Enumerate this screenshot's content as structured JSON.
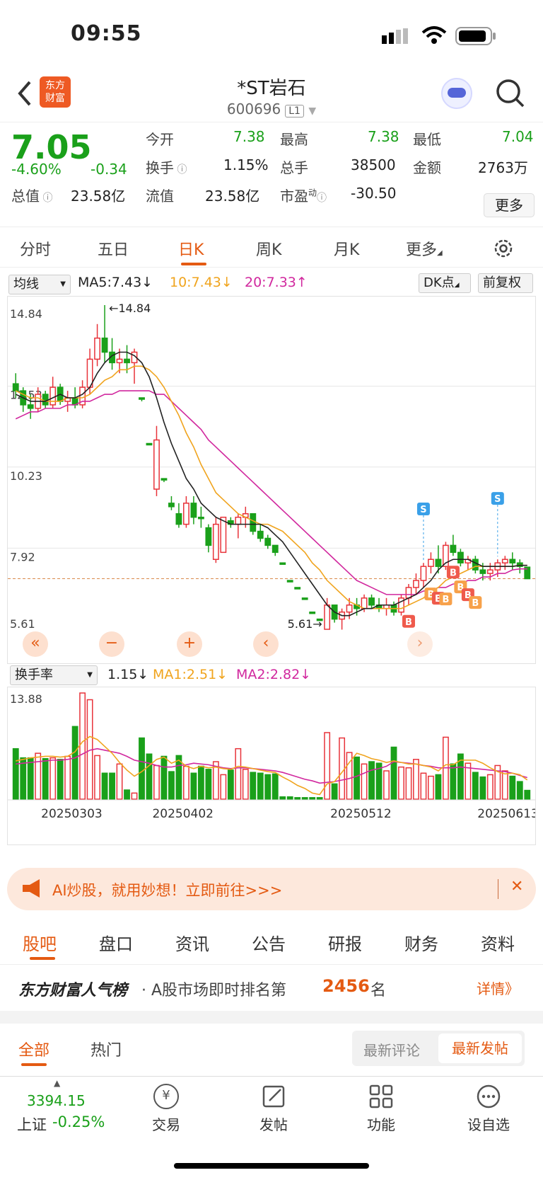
{
  "status": {
    "time": "09:55"
  },
  "nav": {
    "title": "*ST岩石",
    "code": "600696",
    "level": "L1"
  },
  "quote": {
    "price": "7.05",
    "pct": "-4.60%",
    "change": "-0.34",
    "items": [
      {
        "label": "今开",
        "value": "7.38"
      },
      {
        "label": "最高",
        "value": "7.38"
      },
      {
        "label": "最低",
        "value": "7.04"
      },
      {
        "label": "换手",
        "value": "1.15%"
      },
      {
        "label": "总手",
        "value": "38500"
      },
      {
        "label": "金额",
        "value": "2763万"
      },
      {
        "label": "总值",
        "value": "23.58亿"
      },
      {
        "label": "流值",
        "value": "23.58亿"
      },
      {
        "label": "市盈",
        "value": "-30.50"
      }
    ],
    "dyn": "动",
    "more": "更多"
  },
  "tabs": [
    "分时",
    "五日",
    "日K",
    "周K",
    "月K",
    "更多"
  ],
  "ma": {
    "select": "均线",
    "ma5": "MA5:7.43↓",
    "ma10": "10:7.43↓",
    "ma20": "20:7.33↑",
    "dk": "DK点",
    "fq": "前复权"
  },
  "vol": {
    "select": "换手率",
    "v": "1.15↓",
    "ma1": "MA1:2.51↓",
    "ma2": "MA2:2.82↓",
    "top": "13.88"
  },
  "chart_data": {
    "type": "candlestick",
    "y_ticks": [
      "14.84",
      "12.53",
      "10.23",
      "7.92",
      "5.61"
    ],
    "ylim": [
      5.61,
      14.84
    ],
    "high_label": "←14.84",
    "low_label": "5.61→",
    "x_ticks": [
      "20250303",
      "20250402",
      "20250512",
      "20250613"
    ],
    "candles": [
      [
        12.6,
        12.9,
        12.2,
        12.4
      ],
      [
        12.4,
        12.5,
        11.8,
        12.0
      ],
      [
        12.0,
        12.3,
        11.6,
        11.9
      ],
      [
        11.9,
        12.5,
        11.8,
        12.3
      ],
      [
        12.3,
        12.4,
        11.9,
        12.0
      ],
      [
        12.0,
        12.8,
        11.9,
        12.5
      ],
      [
        12.5,
        12.6,
        12.0,
        12.1
      ],
      [
        12.1,
        12.4,
        11.8,
        12.2
      ],
      [
        12.2,
        12.5,
        11.9,
        12.0
      ],
      [
        12.0,
        12.7,
        11.9,
        12.5
      ],
      [
        12.5,
        13.6,
        12.3,
        13.3
      ],
      [
        13.3,
        14.3,
        13.1,
        13.9
      ],
      [
        13.9,
        14.84,
        13.2,
        13.5
      ],
      [
        13.5,
        13.9,
        13.0,
        13.2
      ],
      [
        13.2,
        13.6,
        12.9,
        13.3
      ],
      [
        13.3,
        13.7,
        12.9,
        13.2
      ],
      [
        13.2,
        13.6,
        12.6,
        13.5
      ],
      [
        12.2,
        12.2,
        12.1,
        12.2
      ],
      [
        10.9,
        10.9,
        10.9,
        10.9
      ],
      [
        9.6,
        11.4,
        9.4,
        11.0
      ],
      [
        9.9,
        9.9,
        9.8,
        9.9
      ],
      [
        9.2,
        9.4,
        9.0,
        9.1
      ],
      [
        8.9,
        9.2,
        8.5,
        8.6
      ],
      [
        8.6,
        9.4,
        8.5,
        9.2
      ],
      [
        9.2,
        9.4,
        8.6,
        8.8
      ],
      [
        8.8,
        9.1,
        8.5,
        8.8
      ],
      [
        8.5,
        8.6,
        7.8,
        8.0
      ],
      [
        7.6,
        8.8,
        7.5,
        8.6
      ],
      [
        7.8,
        8.8,
        7.8,
        8.8
      ],
      [
        8.7,
        8.8,
        8.5,
        8.6
      ],
      [
        8.6,
        8.9,
        8.2,
        8.8
      ],
      [
        8.8,
        9.1,
        8.5,
        8.9
      ],
      [
        8.9,
        8.9,
        8.3,
        8.4
      ],
      [
        8.4,
        8.6,
        8.1,
        8.2
      ],
      [
        8.2,
        8.3,
        7.9,
        8.0
      ],
      [
        8.0,
        8.0,
        7.7,
        7.8
      ],
      [
        7.5,
        7.5,
        7.5,
        7.5
      ],
      [
        7.0,
        7.0,
        7.0,
        7.0
      ],
      [
        6.8,
        6.8,
        6.8,
        6.8
      ],
      [
        6.5,
        6.5,
        6.5,
        6.5
      ],
      [
        6.1,
        6.1,
        6.1,
        6.1
      ],
      [
        5.9,
        5.9,
        5.9,
        5.9
      ],
      [
        5.61,
        6.5,
        5.61,
        6.3
      ],
      [
        6.3,
        6.3,
        5.8,
        5.9
      ],
      [
        5.9,
        6.2,
        5.6,
        6.1
      ],
      [
        6.1,
        6.5,
        5.9,
        6.3
      ],
      [
        6.3,
        6.5,
        6.0,
        6.2
      ],
      [
        6.2,
        6.6,
        6.1,
        6.5
      ],
      [
        6.5,
        6.6,
        6.2,
        6.3
      ],
      [
        6.3,
        6.5,
        6.1,
        6.2
      ],
      [
        6.2,
        6.5,
        6.0,
        6.3
      ],
      [
        6.3,
        6.4,
        6.0,
        6.1
      ],
      [
        6.1,
        6.6,
        6.0,
        6.5
      ],
      [
        6.5,
        6.9,
        6.3,
        6.8
      ],
      [
        6.8,
        7.2,
        6.6,
        7.0
      ],
      [
        7.0,
        7.5,
        6.8,
        7.4
      ],
      [
        7.4,
        7.8,
        7.2,
        7.6
      ],
      [
        7.6,
        8.0,
        7.2,
        7.4
      ],
      [
        7.4,
        8.1,
        7.3,
        8.0
      ],
      [
        8.0,
        8.3,
        7.7,
        7.8
      ],
      [
        7.8,
        7.9,
        7.4,
        7.5
      ],
      [
        7.5,
        7.7,
        7.3,
        7.6
      ],
      [
        7.6,
        7.7,
        7.2,
        7.3
      ],
      [
        7.3,
        7.5,
        7.0,
        7.2
      ],
      [
        7.2,
        7.5,
        7.0,
        7.3
      ],
      [
        7.3,
        7.6,
        7.1,
        7.5
      ],
      [
        7.5,
        7.7,
        7.3,
        7.6
      ],
      [
        7.6,
        7.8,
        7.3,
        7.5
      ],
      [
        7.5,
        7.6,
        7.2,
        7.4
      ],
      [
        7.38,
        7.38,
        7.04,
        7.05
      ]
    ],
    "ma5": [
      12.3,
      12.2,
      12.1,
      12.1,
      12.1,
      12.2,
      12.3,
      12.2,
      12.2,
      12.3,
      12.5,
      12.9,
      13.2,
      13.4,
      13.5,
      13.5,
      13.4,
      13.2,
      12.8,
      12.2,
      11.5,
      10.9,
      10.4,
      9.9,
      9.6,
      9.2,
      9.0,
      8.8,
      8.7,
      8.6,
      8.6,
      8.6,
      8.6,
      8.6,
      8.5,
      8.3,
      8.1,
      7.8,
      7.5,
      7.2,
      6.9,
      6.6,
      6.3,
      6.1,
      6.0,
      6.0,
      6.1,
      6.2,
      6.2,
      6.3,
      6.3,
      6.3,
      6.4,
      6.5,
      6.6,
      6.8,
      7.0,
      7.3,
      7.5,
      7.6,
      7.6,
      7.6,
      7.5,
      7.4,
      7.4,
      7.4,
      7.4,
      7.4,
      7.43,
      7.43
    ],
    "ma10": [
      12.4,
      12.3,
      12.2,
      12.2,
      12.1,
      12.1,
      12.1,
      12.2,
      12.2,
      12.2,
      12.3,
      12.5,
      12.7,
      12.8,
      13.0,
      13.0,
      13.1,
      13.1,
      13.0,
      12.8,
      12.5,
      12.1,
      11.7,
      11.2,
      10.8,
      10.3,
      9.9,
      9.5,
      9.3,
      9.1,
      8.9,
      8.8,
      8.7,
      8.6,
      8.6,
      8.5,
      8.4,
      8.2,
      8.0,
      7.8,
      7.5,
      7.3,
      7.0,
      6.8,
      6.6,
      6.4,
      6.3,
      6.2,
      6.2,
      6.2,
      6.2,
      6.2,
      6.2,
      6.3,
      6.4,
      6.5,
      6.7,
      6.8,
      7.0,
      7.1,
      7.2,
      7.3,
      7.4,
      7.4,
      7.4,
      7.4,
      7.4,
      7.4,
      7.43,
      7.43
    ],
    "ma20": [
      11.6,
      11.7,
      11.8,
      11.8,
      11.9,
      11.9,
      11.9,
      12.0,
      12.0,
      12.1,
      12.1,
      12.2,
      12.3,
      12.3,
      12.4,
      12.4,
      12.4,
      12.4,
      12.4,
      12.3,
      12.3,
      12.1,
      11.9,
      11.7,
      11.5,
      11.3,
      11.0,
      10.8,
      10.6,
      10.4,
      10.2,
      10.0,
      9.8,
      9.6,
      9.4,
      9.2,
      9.0,
      8.8,
      8.6,
      8.4,
      8.2,
      8.0,
      7.8,
      7.6,
      7.4,
      7.2,
      7.0,
      6.9,
      6.8,
      6.7,
      6.6,
      6.6,
      6.6,
      6.6,
      6.6,
      6.7,
      6.7,
      6.8,
      6.8,
      6.9,
      6.9,
      7.0,
      7.0,
      7.1,
      7.1,
      7.2,
      7.2,
      7.3,
      7.33,
      7.33
    ],
    "turnover": [
      6.6,
      5.4,
      5.4,
      6.0,
      5.3,
      5.4,
      5.2,
      5.6,
      9.5,
      13.88,
      13.0,
      5.7,
      3.4,
      3.4,
      4.6,
      1.2,
      0.8,
      8.0,
      5.9,
      4.4,
      5.6,
      3.6,
      5.7,
      4.3,
      3.4,
      4.3,
      3.9,
      4.9,
      3.2,
      3.8,
      6.6,
      3.9,
      3.5,
      3.4,
      3.2,
      3.3,
      0.3,
      0.3,
      0.2,
      0.2,
      0.2,
      0.2,
      8.7,
      2.0,
      8.0,
      6.1,
      5.5,
      4.6,
      4.9,
      4.7,
      3.7,
      6.8,
      4.2,
      4.1,
      5.2,
      3.4,
      3.0,
      3.2,
      8.1,
      4.6,
      5.9,
      4.7,
      3.5,
      2.9,
      3.2,
      4.4,
      3.7,
      3.0,
      2.3,
      1.15
    ],
    "turnover_ma1": [
      5.0,
      5.2,
      5.4,
      5.5,
      5.6,
      5.6,
      5.5,
      5.6,
      6.2,
      7.5,
      8.2,
      7.8,
      6.9,
      6.0,
      4.8,
      3.8,
      3.0,
      3.6,
      4.4,
      5.2,
      5.5,
      4.7,
      5.1,
      4.3,
      4.0,
      4.3,
      4.1,
      4.2,
      4.0,
      3.9,
      4.3,
      4.2,
      4.0,
      3.8,
      3.6,
      3.5,
      2.9,
      2.4,
      1.8,
      1.4,
      0.8,
      0.6,
      2.0,
      2.3,
      3.5,
      4.8,
      6.0,
      5.7,
      5.3,
      5.1,
      4.8,
      5.0,
      4.8,
      4.6,
      4.6,
      4.4,
      4.2,
      3.7,
      4.5,
      4.5,
      5.1,
      5.1,
      5.1,
      4.7,
      4.1,
      3.6,
      3.3,
      3.4,
      3.2,
      2.51
    ],
    "turnover_ma2": [
      4.6,
      4.7,
      4.8,
      4.9,
      5.0,
      5.1,
      5.1,
      5.2,
      5.4,
      5.9,
      6.4,
      6.6,
      6.4,
      6.2,
      6.0,
      5.6,
      5.1,
      4.9,
      4.7,
      4.4,
      4.2,
      4.2,
      4.4,
      4.5,
      4.7,
      4.6,
      4.5,
      4.3,
      4.1,
      4.0,
      4.1,
      4.1,
      4.0,
      3.9,
      3.8,
      3.7,
      3.5,
      3.2,
      2.9,
      2.6,
      2.4,
      2.1,
      2.2,
      2.3,
      2.5,
      2.7,
      3.0,
      3.4,
      3.8,
      4.0,
      4.3,
      4.9,
      4.8,
      4.7,
      4.6,
      4.4,
      4.3,
      4.1,
      4.1,
      4.1,
      4.2,
      4.1,
      4.0,
      3.9,
      3.8,
      3.7,
      3.6,
      3.4,
      3.1,
      2.82
    ],
    "markers": {
      "S": [
        55,
        65
      ],
      "B": [
        53,
        56,
        57,
        58,
        59,
        60,
        61,
        62
      ]
    }
  },
  "ad": {
    "text": "AI炒股，就用妙想！立即前往>>>",
    "close": "✕"
  },
  "subtabs": [
    "股吧",
    "盘口",
    "资讯",
    "公告",
    "研报",
    "财务",
    "资料"
  ],
  "rank": {
    "title": "东方财富人气榜",
    "text": "· A股市场即时排名第",
    "num": "2456",
    "unit": "名",
    "detail": "详情》"
  },
  "filters": {
    "all": "全部",
    "hot": "热门",
    "latest_comment": "最新评论",
    "latest_post": "最新发帖"
  },
  "bottom": {
    "index_value": "3394.15",
    "index_name": "上证",
    "index_pct": "-0.25%",
    "trade": "交易",
    "post": "发帖",
    "func": "功能",
    "watch": "设自选"
  },
  "colors": {
    "accent": "#e45a12",
    "up": "#e8333a",
    "down": "#1aa01a"
  }
}
